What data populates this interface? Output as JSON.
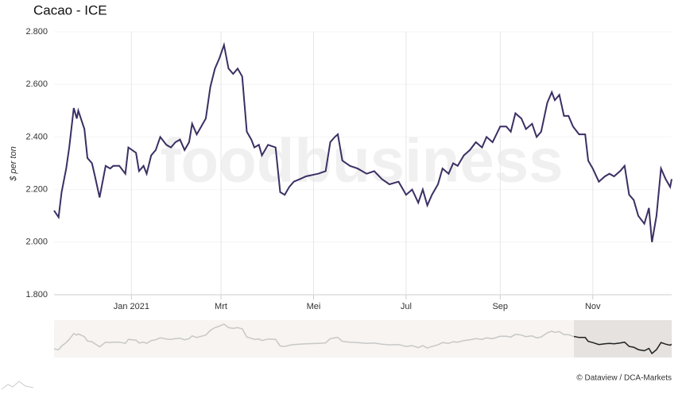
{
  "chart_data": {
    "type": "line",
    "title": "Cacao - ICE",
    "ylabel": "$ per ton",
    "watermark": "foodbusiness",
    "credit": "© Dataview / DCA-Markets",
    "x": [
      -51,
      -48,
      -46,
      -43,
      -41,
      -38,
      -36,
      -35,
      -31,
      -29,
      -26,
      -24,
      -21,
      -17,
      -14,
      -12,
      -8,
      -4,
      -2,
      3,
      5,
      8,
      10,
      13,
      16,
      19,
      23,
      26,
      29,
      32,
      35,
      38,
      40,
      43,
      46,
      49,
      52,
      55,
      58,
      61,
      64,
      67,
      70,
      73,
      76,
      79,
      81,
      84,
      86,
      90,
      95,
      98,
      101,
      104,
      107,
      111,
      115,
      123,
      128,
      131,
      134,
      136,
      139,
      144,
      149,
      155,
      160,
      165,
      170,
      176,
      181,
      185,
      189,
      192,
      195,
      198,
      202,
      205,
      209,
      212,
      215,
      219,
      223,
      227,
      231,
      234,
      238,
      243,
      247,
      250,
      253,
      257,
      260,
      264,
      267,
      270,
      274,
      277,
      279,
      282,
      285,
      288,
      291,
      295,
      299,
      301,
      304,
      308,
      312,
      315,
      318,
      322,
      325,
      328,
      331,
      334,
      338,
      341,
      343,
      346,
      349,
      352,
      355,
      356
    ],
    "series": [
      {
        "name": "Cacao - ICE",
        "color": "#3b2f63",
        "values": [
          2120,
          2095,
          2190,
          2280,
          2360,
          2510,
          2470,
          2500,
          2430,
          2320,
          2300,
          2250,
          2170,
          2290,
          2280,
          2290,
          2290,
          2260,
          2360,
          2340,
          2270,
          2290,
          2260,
          2330,
          2350,
          2400,
          2370,
          2360,
          2380,
          2390,
          2350,
          2380,
          2450,
          2410,
          2440,
          2470,
          2590,
          2660,
          2700,
          2750,
          2660,
          2640,
          2660,
          2630,
          2420,
          2390,
          2360,
          2370,
          2330,
          2370,
          2360,
          2190,
          2180,
          2210,
          2230,
          2240,
          2250,
          2260,
          2270,
          2380,
          2400,
          2410,
          2310,
          2290,
          2280,
          2260,
          2270,
          2240,
          2220,
          2230,
          2180,
          2200,
          2150,
          2200,
          2140,
          2180,
          2220,
          2280,
          2260,
          2300,
          2290,
          2330,
          2350,
          2380,
          2360,
          2400,
          2380,
          2440,
          2440,
          2420,
          2490,
          2470,
          2430,
          2450,
          2400,
          2420,
          2530,
          2570,
          2540,
          2560,
          2480,
          2480,
          2440,
          2410,
          2410,
          2310,
          2280,
          2230,
          2250,
          2260,
          2250,
          2270,
          2290,
          2180,
          2160,
          2100,
          2070,
          2130,
          2000,
          2100,
          2280,
          2240,
          2210,
          2240
        ]
      }
    ],
    "xlim": [
      -51,
      356
    ],
    "xticks": [
      {
        "value": 0,
        "label": "Jan 2021"
      },
      {
        "value": 59,
        "label": "Mrt"
      },
      {
        "value": 120,
        "label": "Mei"
      },
      {
        "value": 181,
        "label": "Jul"
      },
      {
        "value": 243,
        "label": "Sep"
      },
      {
        "value": 304,
        "label": "Nov"
      }
    ],
    "ylim": [
      1800,
      2800
    ],
    "yticks": [
      {
        "value": 1800,
        "label": "1.800"
      },
      {
        "value": 2000,
        "label": "2.000"
      },
      {
        "value": 2200,
        "label": "2.200"
      },
      {
        "value": 2400,
        "label": "2.400"
      },
      {
        "value": 2600,
        "label": "2.600"
      },
      {
        "value": 2800,
        "label": "2.800"
      }
    ],
    "grid": "x"
  }
}
